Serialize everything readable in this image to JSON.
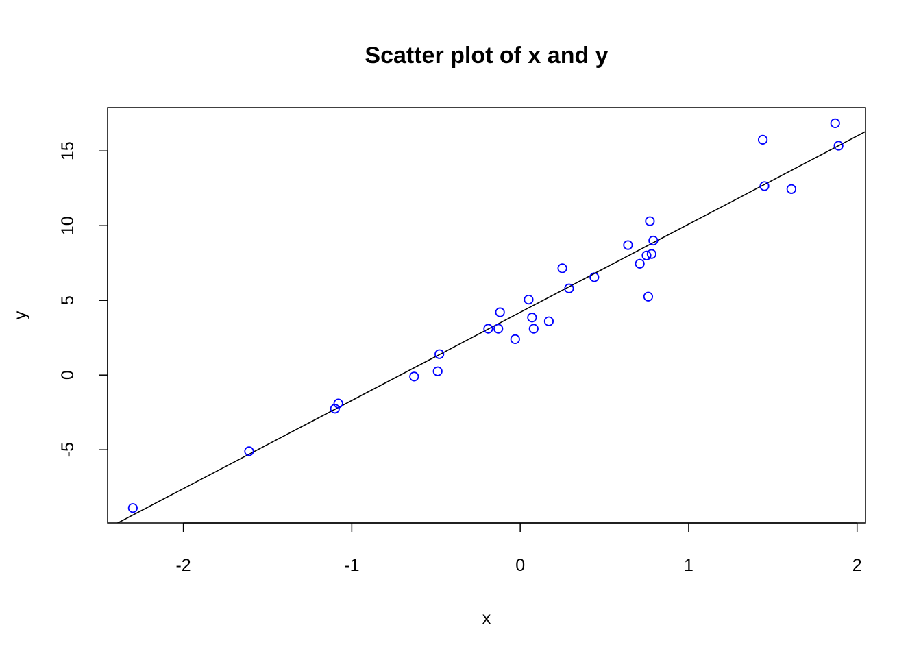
{
  "chart_data": {
    "type": "scatter",
    "title": "Scatter plot of x and y",
    "xlabel": "x",
    "ylabel": "y",
    "xlim": [
      -2.45,
      2.05
    ],
    "ylim": [
      -9.9,
      17.9
    ],
    "xticks": [
      -2,
      -1,
      0,
      1,
      2
    ],
    "yticks": [
      -5,
      0,
      5,
      10,
      15
    ],
    "point_color": "#0000ff",
    "line_color": "#000000",
    "grid": false,
    "regression_line": {
      "intercept": 4.2,
      "slope": 5.9
    },
    "points": [
      {
        "x": -2.3,
        "y": -8.9
      },
      {
        "x": -1.61,
        "y": -5.1
      },
      {
        "x": -1.1,
        "y": -2.25
      },
      {
        "x": -1.08,
        "y": -1.9
      },
      {
        "x": -0.63,
        "y": -0.1
      },
      {
        "x": -0.49,
        "y": 0.25
      },
      {
        "x": -0.48,
        "y": 1.4
      },
      {
        "x": -0.19,
        "y": 3.1
      },
      {
        "x": -0.13,
        "y": 3.1
      },
      {
        "x": -0.12,
        "y": 4.2
      },
      {
        "x": -0.03,
        "y": 2.4
      },
      {
        "x": 0.05,
        "y": 5.05
      },
      {
        "x": 0.07,
        "y": 3.85
      },
      {
        "x": 0.08,
        "y": 3.1
      },
      {
        "x": 0.17,
        "y": 3.6
      },
      {
        "x": 0.25,
        "y": 7.15
      },
      {
        "x": 0.29,
        "y": 5.8
      },
      {
        "x": 0.44,
        "y": 6.55
      },
      {
        "x": 0.64,
        "y": 8.7
      },
      {
        "x": 0.71,
        "y": 7.45
      },
      {
        "x": 0.75,
        "y": 8.0
      },
      {
        "x": 0.76,
        "y": 5.25
      },
      {
        "x": 0.77,
        "y": 10.3
      },
      {
        "x": 0.78,
        "y": 8.1
      },
      {
        "x": 0.79,
        "y": 9.0
      },
      {
        "x": 1.44,
        "y": 15.75
      },
      {
        "x": 1.45,
        "y": 12.65
      },
      {
        "x": 1.61,
        "y": 12.45
      },
      {
        "x": 1.87,
        "y": 16.85
      },
      {
        "x": 1.89,
        "y": 15.35
      }
    ]
  }
}
